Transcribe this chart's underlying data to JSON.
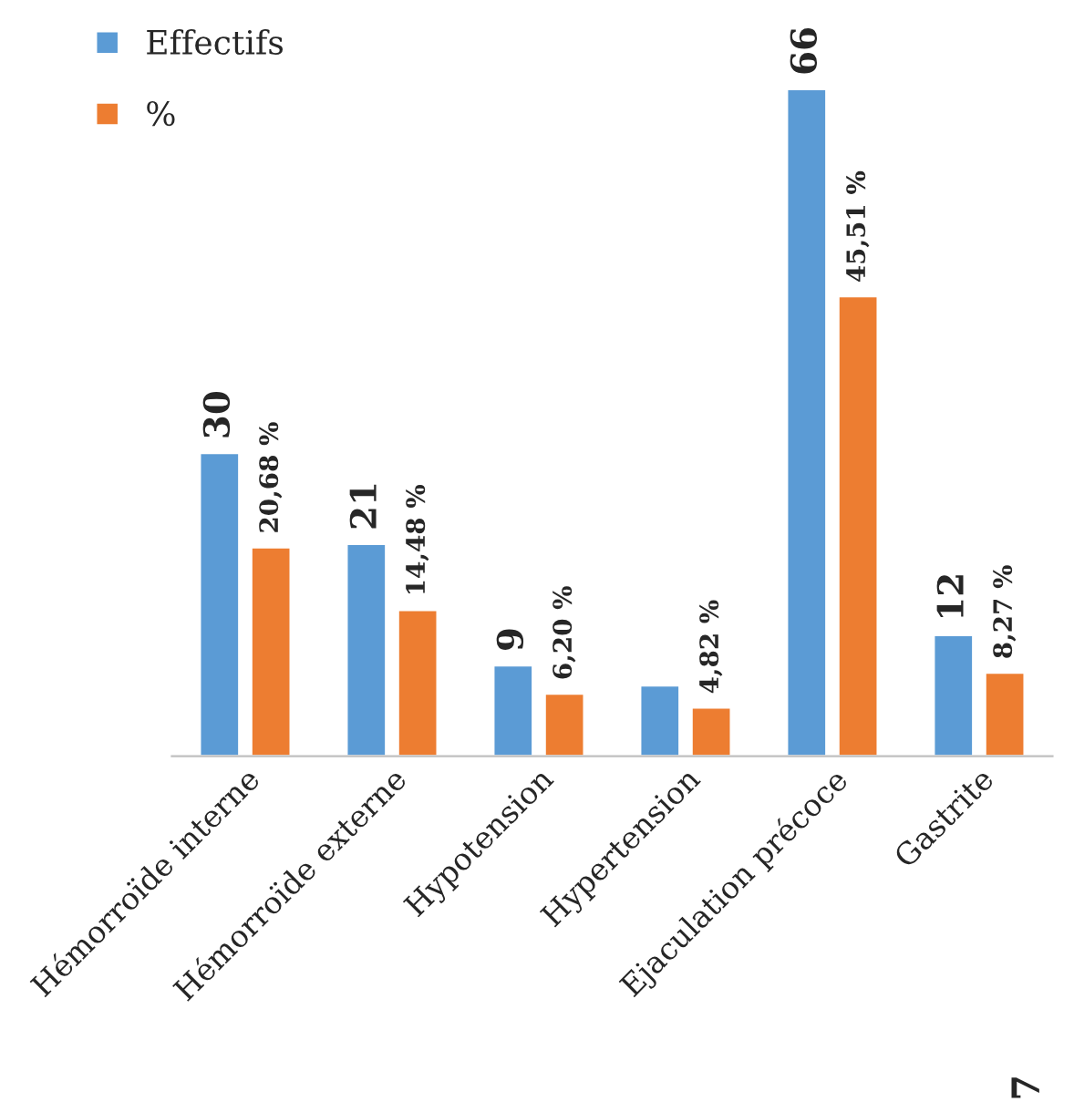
{
  "chart_data": {
    "type": "bar",
    "categories": [
      "Hémorroïde interne",
      "Hémorroïde externe",
      "Hypotension",
      "Hypertension",
      "Ejaculation précoce",
      "Gastrite"
    ],
    "series": [
      {
        "name": "Effectifs",
        "color": "#5b9bd5",
        "values": [
          30,
          21,
          9,
          7,
          66,
          12
        ],
        "value_labels": [
          "30",
          "21",
          "9",
          null,
          "66",
          "12"
        ]
      },
      {
        "name": "%",
        "color": "#ed7d31",
        "values": [
          20.68,
          14.48,
          6.2,
          4.82,
          45.51,
          8.27
        ],
        "value_labels": [
          "20,68 %",
          "14,48 %",
          "6,20 %",
          "4,82 %",
          "45,51 %",
          "8,27 %"
        ]
      }
    ],
    "legend": "top left",
    "grid": false,
    "tick_labels": "x",
    "annotations": [
      "7"
    ]
  }
}
